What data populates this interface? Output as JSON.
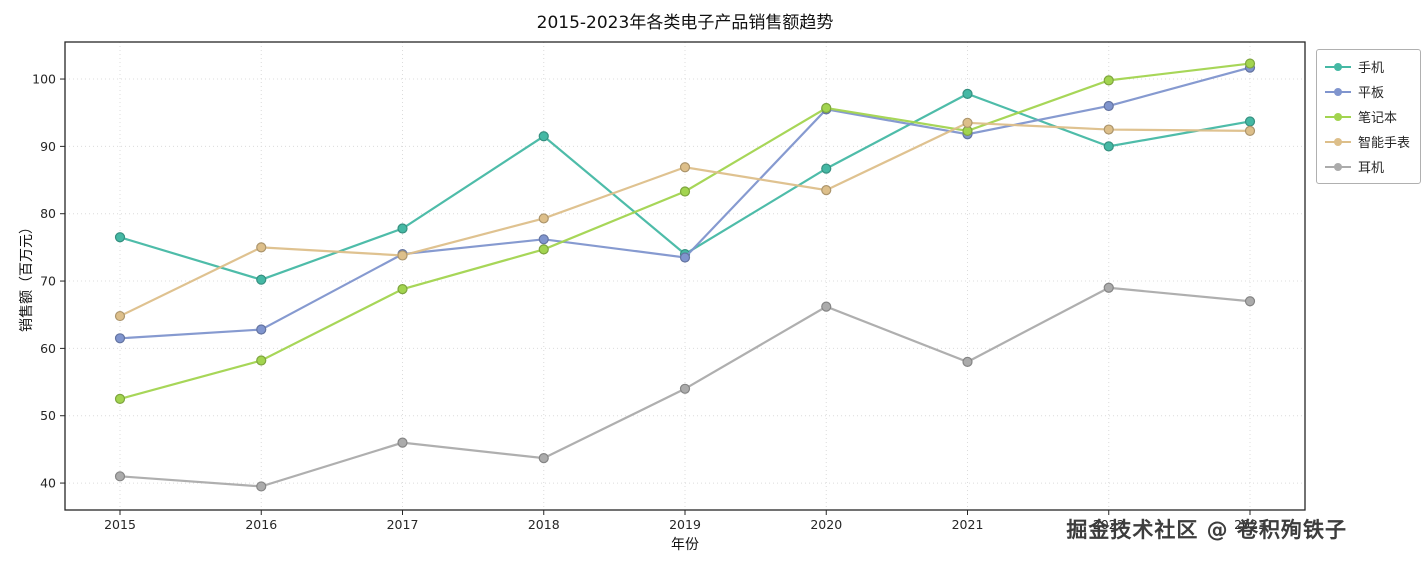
{
  "chart_data": {
    "type": "line",
    "title": "2015-2023年各类电子产品销售额趋势",
    "xlabel": "年份",
    "ylabel": "销售额（百万元）",
    "x": [
      2015,
      2016,
      2017,
      2018,
      2019,
      2020,
      2021,
      2022,
      2023
    ],
    "series": [
      {
        "name": "手机",
        "color": "#45b8a4",
        "values": [
          76.5,
          70.2,
          77.8,
          91.5,
          74.0,
          86.7,
          97.8,
          90.0,
          93.7
        ]
      },
      {
        "name": "平板",
        "color": "#8095ce",
        "values": [
          61.5,
          62.8,
          74.0,
          76.2,
          73.5,
          95.5,
          91.8,
          96.0,
          101.7
        ]
      },
      {
        "name": "笔记本",
        "color": "#a2d44f",
        "values": [
          52.5,
          58.2,
          68.8,
          74.7,
          83.3,
          95.7,
          92.3,
          99.8,
          102.3
        ]
      },
      {
        "name": "智能手表",
        "color": "#ddbf8a",
        "values": [
          64.8,
          75.0,
          73.8,
          79.3,
          86.9,
          83.5,
          93.5,
          92.5,
          92.3
        ]
      },
      {
        "name": "耳机",
        "color": "#ababab",
        "values": [
          41.0,
          39.5,
          46.0,
          43.7,
          54.0,
          66.2,
          58.0,
          69.0,
          67.0
        ]
      }
    ],
    "ylim": [
      36,
      105.5
    ],
    "yticks": [
      40,
      50,
      60,
      70,
      80,
      90,
      100
    ],
    "grid": true,
    "legend_position": "upper right outside"
  },
  "watermark": "掘金技术社区 @ 卷积殉铁子"
}
